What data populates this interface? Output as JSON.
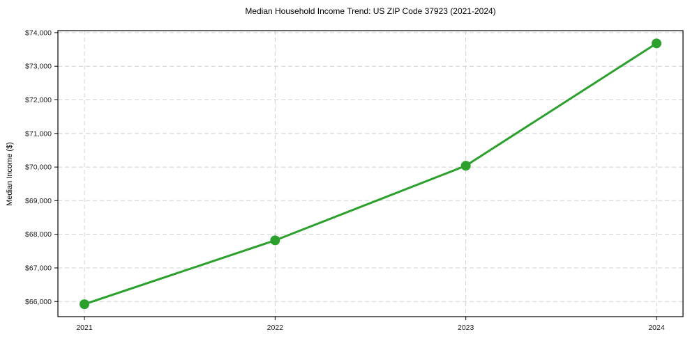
{
  "chart_data": {
    "type": "line",
    "title": "Median Household Income Trend: US ZIP Code 37923 (2021-2024)",
    "xlabel": "",
    "ylabel": "Median Income ($)",
    "categories": [
      "2021",
      "2022",
      "2023",
      "2024"
    ],
    "series": [
      {
        "name": "Median Household Income",
        "values": [
          65920,
          67820,
          70040,
          73680
        ]
      }
    ],
    "yticks": [
      66000,
      67000,
      68000,
      69000,
      70000,
      71000,
      72000,
      73000,
      74000
    ],
    "ytick_labels": [
      "$66,000",
      "$67,000",
      "$68,000",
      "$69,000",
      "$70,000",
      "$71,000",
      "$72,000",
      "$73,000",
      "$74,000"
    ],
    "ylim": [
      65550,
      74060
    ],
    "grid": true,
    "grid_linestyle": "dashed",
    "legend_position": "none",
    "line_color": "#2ca02c",
    "marker": "circle",
    "marker_size": 7,
    "grid_color": "#d0d0d0",
    "spine_color": "#000000",
    "text_color": "#1a1a1a",
    "background_color": "#ffffff"
  }
}
